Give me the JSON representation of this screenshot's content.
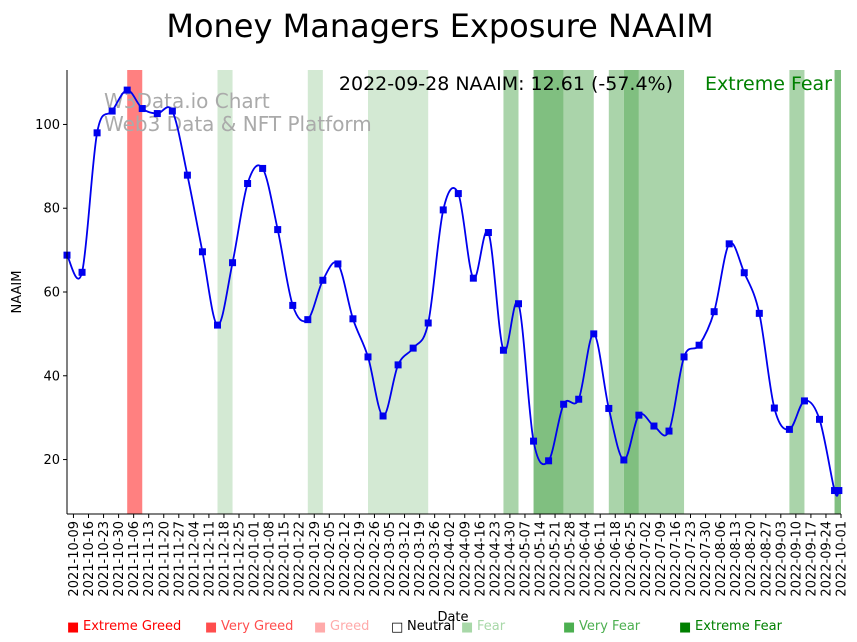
{
  "chart_data": {
    "type": "line",
    "title": "Money Managers Exposure NAAIM",
    "xlabel": "Date",
    "ylabel": "NAAIM",
    "ylim": [
      7,
      113
    ],
    "yticks": [
      20,
      40,
      60,
      80,
      100
    ],
    "watermark": [
      "W3Data.io Chart",
      "Web3 Data & NFT Platform"
    ],
    "annotation": {
      "text": "2022-09-28 NAAIM: 12.61 (-57.4%)",
      "sentiment": "Extreme Fear",
      "sentiment_color": "#008000"
    },
    "x": [
      "2021-10-09",
      "2021-10-16",
      "2021-10-23",
      "2021-10-30",
      "2021-11-06",
      "2021-11-13",
      "2021-11-20",
      "2021-11-27",
      "2021-12-04",
      "2021-12-11",
      "2021-12-18",
      "2021-12-25",
      "2022-01-01",
      "2022-01-08",
      "2022-01-15",
      "2022-01-22",
      "2022-01-29",
      "2022-02-05",
      "2022-02-12",
      "2022-02-19",
      "2022-02-26",
      "2022-03-05",
      "2022-03-12",
      "2022-03-19",
      "2022-03-26",
      "2022-04-02",
      "2022-04-09",
      "2022-04-16",
      "2022-04-23",
      "2022-04-30",
      "2022-05-07",
      "2022-05-14",
      "2022-05-21",
      "2022-05-28",
      "2022-06-04",
      "2022-06-11",
      "2022-06-18",
      "2022-06-25",
      "2022-07-02",
      "2022-07-09",
      "2022-07-16",
      "2022-07-23",
      "2022-07-30",
      "2022-08-06",
      "2022-08-13",
      "2022-08-20",
      "2022-08-27",
      "2022-09-03",
      "2022-09-10",
      "2022-09-17",
      "2022-09-24",
      "2022-10-01"
    ],
    "points": [
      {
        "x": "2021-10-06",
        "y": 68.8
      },
      {
        "x": "2021-10-13",
        "y": 64.7
      },
      {
        "x": "2021-10-20",
        "y": 98.0
      },
      {
        "x": "2021-10-27",
        "y": 103.2
      },
      {
        "x": "2021-11-03",
        "y": 108.2
      },
      {
        "x": "2021-11-10",
        "y": 103.8
      },
      {
        "x": "2021-11-17",
        "y": 102.6
      },
      {
        "x": "2021-11-24",
        "y": 103.2
      },
      {
        "x": "2021-12-01",
        "y": 87.9
      },
      {
        "x": "2021-12-08",
        "y": 69.6
      },
      {
        "x": "2021-12-15",
        "y": 52.1
      },
      {
        "x": "2021-12-22",
        "y": 67.0
      },
      {
        "x": "2021-12-29",
        "y": 85.9
      },
      {
        "x": "2022-01-05",
        "y": 89.5
      },
      {
        "x": "2022-01-12",
        "y": 74.9
      },
      {
        "x": "2022-01-19",
        "y": 56.8
      },
      {
        "x": "2022-01-26",
        "y": 53.4
      },
      {
        "x": "2022-02-02",
        "y": 62.8
      },
      {
        "x": "2022-02-09",
        "y": 66.7
      },
      {
        "x": "2022-02-16",
        "y": 53.6
      },
      {
        "x": "2022-02-23",
        "y": 44.5
      },
      {
        "x": "2022-03-02",
        "y": 30.4
      },
      {
        "x": "2022-03-09",
        "y": 42.6
      },
      {
        "x": "2022-03-16",
        "y": 46.6
      },
      {
        "x": "2022-03-23",
        "y": 52.6
      },
      {
        "x": "2022-03-30",
        "y": 79.6
      },
      {
        "x": "2022-04-06",
        "y": 83.5
      },
      {
        "x": "2022-04-13",
        "y": 63.3
      },
      {
        "x": "2022-04-20",
        "y": 74.2
      },
      {
        "x": "2022-04-27",
        "y": 46.1
      },
      {
        "x": "2022-05-04",
        "y": 57.2
      },
      {
        "x": "2022-05-11",
        "y": 24.4
      },
      {
        "x": "2022-05-18",
        "y": 19.7
      },
      {
        "x": "2022-05-25",
        "y": 33.2
      },
      {
        "x": "2022-06-01",
        "y": 34.4
      },
      {
        "x": "2022-06-08",
        "y": 50.0
      },
      {
        "x": "2022-06-15",
        "y": 32.2
      },
      {
        "x": "2022-06-22",
        "y": 19.9
      },
      {
        "x": "2022-06-29",
        "y": 30.6
      },
      {
        "x": "2022-07-06",
        "y": 28.0
      },
      {
        "x": "2022-07-13",
        "y": 26.8
      },
      {
        "x": "2022-07-20",
        "y": 44.5
      },
      {
        "x": "2022-07-27",
        "y": 47.3
      },
      {
        "x": "2022-08-03",
        "y": 55.3
      },
      {
        "x": "2022-08-10",
        "y": 71.5
      },
      {
        "x": "2022-08-17",
        "y": 64.6
      },
      {
        "x": "2022-08-24",
        "y": 54.9
      },
      {
        "x": "2022-08-31",
        "y": 32.3
      },
      {
        "x": "2022-09-07",
        "y": 27.2
      },
      {
        "x": "2022-09-14",
        "y": 34.0
      },
      {
        "x": "2022-09-21",
        "y": 29.6
      },
      {
        "x": "2022-09-28",
        "y": 12.6
      },
      {
        "x": "2022-09-30",
        "y": 12.6
      }
    ],
    "bands": [
      {
        "start": "2021-11-03",
        "end": "2021-11-10",
        "sentiment": "Extreme Greed"
      },
      {
        "start": "2021-12-15",
        "end": "2021-12-22",
        "sentiment": "Fear"
      },
      {
        "start": "2022-01-26",
        "end": "2022-02-02",
        "sentiment": "Fear"
      },
      {
        "start": "2022-02-23",
        "end": "2022-03-23",
        "sentiment": "Fear"
      },
      {
        "start": "2022-04-27",
        "end": "2022-05-04",
        "sentiment": "Very Fear"
      },
      {
        "start": "2022-05-11",
        "end": "2022-05-25",
        "sentiment": "Extreme Fear"
      },
      {
        "start": "2022-05-25",
        "end": "2022-06-08",
        "sentiment": "Very Fear"
      },
      {
        "start": "2022-06-15",
        "end": "2022-06-22",
        "sentiment": "Very Fear"
      },
      {
        "start": "2022-06-22",
        "end": "2022-06-29",
        "sentiment": "Extreme Fear"
      },
      {
        "start": "2022-06-29",
        "end": "2022-07-20",
        "sentiment": "Very Fear"
      },
      {
        "start": "2022-09-07",
        "end": "2022-09-14",
        "sentiment": "Very Fear"
      },
      {
        "start": "2022-09-28",
        "end": "2022-10-13",
        "sentiment": "Extreme Fear"
      }
    ],
    "legend": [
      {
        "label": "Extreme Greed",
        "color": "#ff0000"
      },
      {
        "label": "Very Greed",
        "color": "#ff4d4d"
      },
      {
        "label": "Greed",
        "color": "#ffaaaa"
      },
      {
        "label": "Neutral",
        "color": "#000000"
      },
      {
        "label": "Fear",
        "color": "#a8d8a8"
      },
      {
        "label": "Very Fear",
        "color": "#4caf50"
      },
      {
        "label": "Extreme Fear",
        "color": "#008000"
      }
    ],
    "band_colors": {
      "Extreme Greed": "#ff8080",
      "Fear": "#d3e9d3",
      "Very Fear": "#aad4aa",
      "Extreme Fear": "#80bf80"
    },
    "line_color": "#0000ee",
    "marker_color": "#0000ee",
    "legend_placement": "bottom",
    "grid": false
  }
}
